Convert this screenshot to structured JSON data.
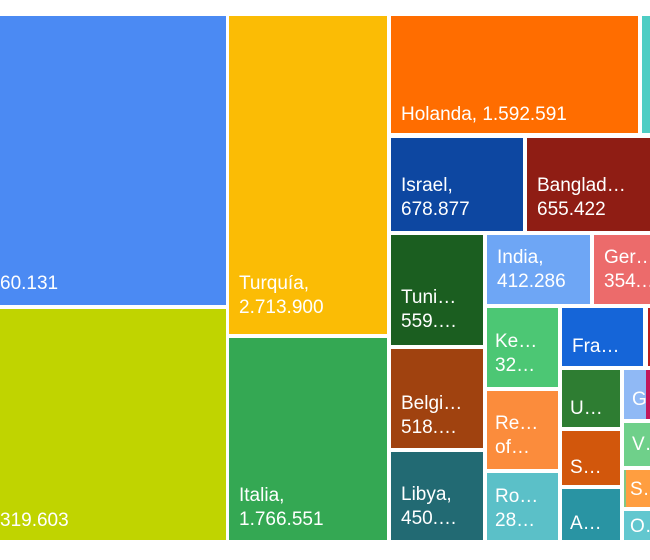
{
  "chart_data": {
    "type": "treemap",
    "items": [
      {
        "label": "60.131",
        "color": "#4b8af3"
      },
      {
        "label": "319.603",
        "color": "#c0d400"
      },
      {
        "label": "Turquía,\n2.713.900",
        "color": "#fbbc05"
      },
      {
        "label": "Italia,\n1.766.551",
        "color": "#34a853"
      },
      {
        "label": "Holanda, 1.592.591",
        "color": "#ff6d00"
      },
      {
        "label": "Israel,\n678.877",
        "color": "#0d47a1"
      },
      {
        "label": "Banglad…\n655.422",
        "color": "#8f1d14"
      },
      {
        "label": "Tuni…\n559.…",
        "color": "#1b5e20"
      },
      {
        "label": "India,\n412.286",
        "color": "#6ea6f5"
      },
      {
        "label": "Ger…\n354.…",
        "color": "#ec6b6b"
      },
      {
        "label": "Ke…\n32…",
        "color": "#4cc774"
      },
      {
        "label": "Fra…",
        "color": "#1565d8"
      },
      {
        "label": "Belgi…\n518.…",
        "color": "#a0420f"
      },
      {
        "label": "Re…\nof…",
        "color": "#fb8c3c"
      },
      {
        "label": "U…",
        "color": "#2e7d32"
      },
      {
        "label": "G…",
        "color": "#90b9f5"
      },
      {
        "label": "S…",
        "color": "#d2570c"
      },
      {
        "label": "V…",
        "color": "#6fd08a"
      },
      {
        "label": "Libya,\n450.…",
        "color": "#226a73"
      },
      {
        "label": "Ro…\n28…",
        "color": "#5bc0c8"
      },
      {
        "label": "A…",
        "color": "#2994a3"
      },
      {
        "label": "S…",
        "color": "#ff9e40"
      },
      {
        "label": "O…",
        "color": "#62c7cf"
      }
    ]
  },
  "extra_tiles": [
    {
      "color": "#4ecdc4"
    },
    {
      "color": "#b71c1c"
    },
    {
      "color": "#c2185b"
    },
    {
      "color": "#81c784"
    }
  ]
}
